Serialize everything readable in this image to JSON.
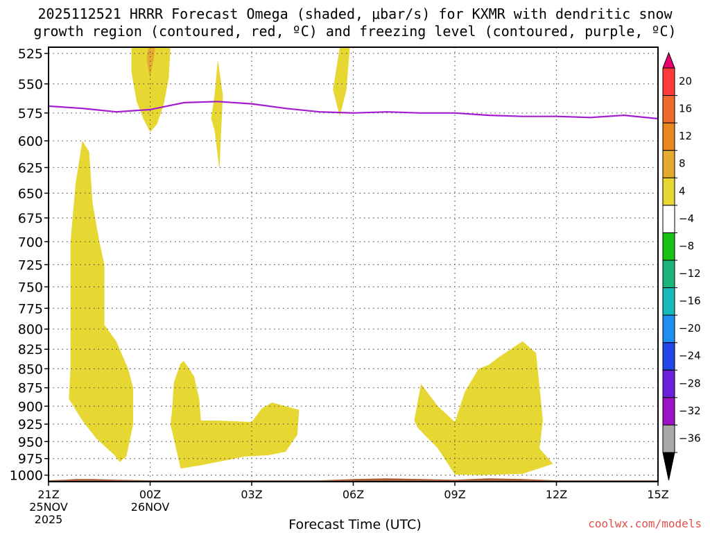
{
  "title_line1": "2025112521 HRRR Forecast Omega (shaded, μbar/s) for KXMR with dendritic snow",
  "title_line2": "growth region (contoured, red, ºC) and freezing level (contoured, purple, ºC)",
  "credit": "coolwx.com/models",
  "chart_data": {
    "type": "heatmap",
    "xlabel": "Forecast Time (UTC)",
    "x_ticks": [
      {
        "label": "21Z",
        "sub": [
          "25NOV",
          "2025"
        ],
        "hour": 0
      },
      {
        "label": "00Z",
        "sub": [
          "26NOV"
        ],
        "hour": 3
      },
      {
        "label": "03Z",
        "sub": [],
        "hour": 6
      },
      {
        "label": "06Z",
        "sub": [],
        "hour": 9
      },
      {
        "label": "09Z",
        "sub": [],
        "hour": 12
      },
      {
        "label": "12Z",
        "sub": [],
        "hour": 15
      },
      {
        "label": "15Z",
        "sub": [],
        "hour": 18
      }
    ],
    "xlim": [
      0,
      18
    ],
    "y_ticks": [
      525,
      550,
      575,
      600,
      625,
      650,
      675,
      700,
      725,
      750,
      775,
      800,
      825,
      850,
      875,
      900,
      925,
      950,
      975,
      1000
    ],
    "y_scale": "log-pressure",
    "ylim": [
      1010,
      520
    ],
    "grid": true,
    "colorbar": {
      "labels": [
        "20",
        "16",
        "12",
        "8",
        "4",
        "−4",
        "−8",
        "−12",
        "−16",
        "−20",
        "−24",
        "−28",
        "−32",
        "−36"
      ],
      "colors": [
        "#ff3b3b",
        "#f06a2a",
        "#e9861f",
        "#e5ab2e",
        "#e6d732",
        "#ffffff",
        "#19c119",
        "#1bb57a",
        "#19b9b9",
        "#1e8ef0",
        "#2346e6",
        "#6a1fd8",
        "#9c12c4",
        "#a8a8a8"
      ],
      "top_arrow": "#e8006e",
      "bottom_arrow": "#000000"
    },
    "freezing_level": {
      "color": "#a31bd1",
      "points": [
        [
          0,
          569
        ],
        [
          1,
          571
        ],
        [
          2,
          574
        ],
        [
          3,
          572
        ],
        [
          4,
          566
        ],
        [
          5,
          565
        ],
        [
          6,
          567
        ],
        [
          7,
          571
        ],
        [
          8,
          574
        ],
        [
          9,
          575
        ],
        [
          10,
          574
        ],
        [
          11,
          575
        ],
        [
          12,
          575
        ],
        [
          13,
          577
        ],
        [
          14,
          578
        ],
        [
          15,
          578
        ],
        [
          16,
          579
        ],
        [
          17,
          577
        ],
        [
          18,
          580
        ]
      ]
    },
    "omega_regions": [
      {
        "level": "4-8",
        "color": "#e6d732",
        "points": [
          [
            1.0,
            600
          ],
          [
            1.2,
            610
          ],
          [
            1.3,
            660
          ],
          [
            1.5,
            700
          ],
          [
            1.65,
            725
          ],
          [
            1.65,
            795
          ],
          [
            2.0,
            815
          ],
          [
            2.35,
            850
          ],
          [
            2.5,
            875
          ],
          [
            2.5,
            925
          ],
          [
            2.3,
            972
          ],
          [
            2.1,
            980
          ],
          [
            1.95,
            970
          ],
          [
            1.4,
            945
          ],
          [
            1.0,
            920
          ],
          [
            0.6,
            890
          ],
          [
            0.65,
            850
          ],
          [
            0.65,
            700
          ],
          [
            0.8,
            640
          ]
        ]
      },
      {
        "level": "4-8",
        "color": "#e6d732",
        "points": [
          [
            2.45,
            514
          ],
          [
            3.6,
            514
          ],
          [
            3.55,
            545
          ],
          [
            3.4,
            568
          ],
          [
            3.2,
            585
          ],
          [
            3.0,
            592
          ],
          [
            2.8,
            580
          ],
          [
            2.6,
            565
          ],
          [
            2.45,
            540
          ]
        ]
      },
      {
        "level": "4-8",
        "color": "#e6d732",
        "points": [
          [
            5.0,
            530
          ],
          [
            5.15,
            560
          ],
          [
            5.1,
            590
          ],
          [
            5.05,
            627
          ],
          [
            4.9,
            590
          ],
          [
            4.8,
            580
          ],
          [
            4.9,
            560
          ]
        ]
      },
      {
        "level": "4-8",
        "color": "#e6d732",
        "points": [
          [
            8.6,
            514
          ],
          [
            8.9,
            514
          ],
          [
            8.8,
            555
          ],
          [
            8.6,
            578
          ],
          [
            8.4,
            555
          ]
        ]
      },
      {
        "level": "4-8",
        "color": "#e6d732",
        "points": [
          [
            3.65,
            905
          ],
          [
            3.7,
            868
          ],
          [
            3.9,
            843
          ],
          [
            4.0,
            840
          ],
          [
            4.3,
            860
          ],
          [
            4.45,
            890
          ],
          [
            4.5,
            920
          ],
          [
            5.0,
            920
          ],
          [
            6.0,
            922
          ],
          [
            6.3,
            903
          ],
          [
            6.6,
            895
          ],
          [
            7.0,
            900
          ],
          [
            7.4,
            905
          ],
          [
            7.35,
            940
          ],
          [
            7.0,
            965
          ],
          [
            6.5,
            970
          ],
          [
            5.8,
            972
          ],
          [
            5.5,
            975
          ],
          [
            4.5,
            985
          ],
          [
            3.9,
            990
          ],
          [
            3.6,
            925
          ]
        ]
      },
      {
        "level": "4-8",
        "color": "#e6d732",
        "points": [
          [
            10.8,
            920
          ],
          [
            11.0,
            870
          ],
          [
            11.5,
            900
          ],
          [
            12.0,
            922
          ],
          [
            12.3,
            880
          ],
          [
            12.7,
            850
          ],
          [
            13.0,
            845
          ],
          [
            13.3,
            835
          ],
          [
            14.0,
            815
          ],
          [
            14.4,
            830
          ],
          [
            14.6,
            920
          ],
          [
            14.5,
            960
          ],
          [
            14.9,
            983
          ],
          [
            14.0,
            998
          ],
          [
            12.8,
            1000
          ],
          [
            12.0,
            999
          ],
          [
            11.5,
            960
          ],
          [
            11.2,
            945
          ],
          [
            10.9,
            930
          ]
        ]
      }
    ],
    "sub_regions": [
      {
        "level": "8-12",
        "color": "#e6ab2e",
        "points": [
          [
            2.95,
            514
          ],
          [
            3.15,
            514
          ],
          [
            3.1,
            530
          ],
          [
            3.0,
            545
          ],
          [
            2.9,
            530
          ]
        ]
      }
    ],
    "terrain": {
      "color": "#a65c34",
      "points": [
        [
          0,
          1008
        ],
        [
          0.5,
          1007
        ],
        [
          0.8,
          1006
        ],
        [
          1.3,
          1006
        ],
        [
          2.0,
          1007
        ],
        [
          3.0,
          1008
        ],
        [
          8.0,
          1008
        ],
        [
          9.0,
          1006
        ],
        [
          10.0,
          1005
        ],
        [
          11.0,
          1006
        ],
        [
          12.0,
          1007
        ],
        [
          13.0,
          1005
        ],
        [
          14.0,
          1006
        ],
        [
          15.0,
          1008
        ],
        [
          18.0,
          1008
        ]
      ]
    }
  }
}
